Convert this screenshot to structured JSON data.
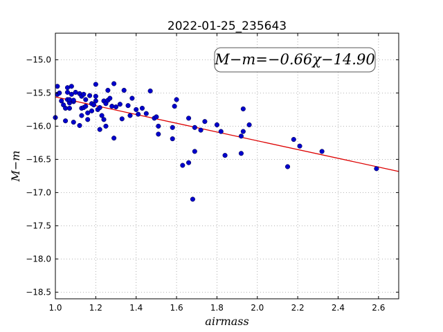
{
  "chart_data": {
    "type": "scatter",
    "title": "2022-01-25_235643",
    "xlabel": "airmass",
    "ylabel": "M−m",
    "xlim": [
      1.0,
      2.7
    ],
    "ylim": [
      -18.6,
      -14.6
    ],
    "y_inverted": true,
    "grid": true,
    "xticks": [
      1.0,
      1.2,
      1.4,
      1.6,
      1.8,
      2.0,
      2.2,
      2.4,
      2.6
    ],
    "xtick_labels": [
      "1.0",
      "1.2",
      "1.4",
      "1.6",
      "1.8",
      "2.0",
      "2.2",
      "2.4",
      "2.6"
    ],
    "yticks": [
      -15.0,
      -15.5,
      -16.0,
      -16.5,
      -17.0,
      -17.5,
      -18.0,
      -18.5
    ],
    "ytick_labels": [
      "−15.0",
      "−15.5",
      "−16.0",
      "−16.5",
      "−17.0",
      "−17.5",
      "−18.0",
      "−18.5"
    ],
    "annotation": "M−m=−0.66χ−14.90",
    "colors": {
      "points": "#0000cc",
      "fit": "#dd0000",
      "grid": "#9a9a9a"
    },
    "fit": {
      "slope": -0.66,
      "intercept": -14.9,
      "x_range": [
        1.0,
        2.7
      ]
    },
    "series": [
      {
        "values": [
          [
            1.0,
            -15.87
          ],
          [
            1.01,
            -15.4
          ],
          [
            1.01,
            -15.52
          ],
          [
            1.02,
            -15.5
          ],
          [
            1.03,
            -15.62
          ],
          [
            1.04,
            -15.68
          ],
          [
            1.05,
            -15.92
          ],
          [
            1.05,
            -15.73
          ],
          [
            1.06,
            -15.49
          ],
          [
            1.06,
            -15.6
          ],
          [
            1.06,
            -15.42
          ],
          [
            1.07,
            -15.65
          ],
          [
            1.07,
            -15.73
          ],
          [
            1.07,
            -15.6
          ],
          [
            1.08,
            -15.52
          ],
          [
            1.08,
            -15.4
          ],
          [
            1.09,
            -15.63
          ],
          [
            1.09,
            -15.94
          ],
          [
            1.09,
            -15.61
          ],
          [
            1.1,
            -15.49
          ],
          [
            1.12,
            -15.51
          ],
          [
            1.12,
            -15.99
          ],
          [
            1.13,
            -15.55
          ],
          [
            1.13,
            -15.84
          ],
          [
            1.13,
            -15.73
          ],
          [
            1.14,
            -15.52
          ],
          [
            1.14,
            -15.72
          ],
          [
            1.15,
            -15.6
          ],
          [
            1.15,
            -15.7
          ],
          [
            1.16,
            -15.8
          ],
          [
            1.16,
            -15.9
          ],
          [
            1.17,
            -15.54
          ],
          [
            1.18,
            -15.66
          ],
          [
            1.18,
            -15.77
          ],
          [
            1.19,
            -15.68
          ],
          [
            1.2,
            -15.37
          ],
          [
            1.2,
            -15.55
          ],
          [
            1.2,
            -15.62
          ],
          [
            1.21,
            -15.75
          ],
          [
            1.22,
            -15.72
          ],
          [
            1.22,
            -16.05
          ],
          [
            1.23,
            -15.84
          ],
          [
            1.24,
            -15.62
          ],
          [
            1.24,
            -15.9
          ],
          [
            1.25,
            -15.66
          ],
          [
            1.25,
            -16.0
          ],
          [
            1.26,
            -15.46
          ],
          [
            1.26,
            -15.61
          ],
          [
            1.27,
            -15.58
          ],
          [
            1.28,
            -15.7
          ],
          [
            1.29,
            -15.36
          ],
          [
            1.29,
            -16.18
          ],
          [
            1.3,
            -15.71
          ],
          [
            1.32,
            -15.67
          ],
          [
            1.33,
            -15.89
          ],
          [
            1.34,
            -15.46
          ],
          [
            1.36,
            -15.69
          ],
          [
            1.37,
            -15.84
          ],
          [
            1.38,
            -15.58
          ],
          [
            1.4,
            -15.75
          ],
          [
            1.41,
            -15.82
          ],
          [
            1.43,
            -15.73
          ],
          [
            1.45,
            -15.81
          ],
          [
            1.47,
            -15.47
          ],
          [
            1.49,
            -15.88
          ],
          [
            1.5,
            -15.86
          ],
          [
            1.51,
            -16.0
          ],
          [
            1.51,
            -16.12
          ],
          [
            1.58,
            -16.19
          ],
          [
            1.58,
            -16.02
          ],
          [
            1.59,
            -15.7
          ],
          [
            1.6,
            -15.6
          ],
          [
            1.63,
            -16.59
          ],
          [
            1.66,
            -16.55
          ],
          [
            1.66,
            -15.88
          ],
          [
            1.68,
            -17.1
          ],
          [
            1.69,
            -16.38
          ],
          [
            1.69,
            -16.02
          ],
          [
            1.72,
            -16.06
          ],
          [
            1.74,
            -15.93
          ],
          [
            1.8,
            -15.98
          ],
          [
            1.82,
            -16.08
          ],
          [
            1.84,
            -16.44
          ],
          [
            1.92,
            -16.41
          ],
          [
            1.92,
            -16.15
          ],
          [
            1.93,
            -16.08
          ],
          [
            1.93,
            -15.74
          ],
          [
            1.96,
            -15.98
          ],
          [
            2.15,
            -16.61
          ],
          [
            2.18,
            -16.2
          ],
          [
            2.21,
            -16.3
          ],
          [
            2.32,
            -16.38
          ],
          [
            2.59,
            -16.64
          ]
        ]
      }
    ]
  }
}
